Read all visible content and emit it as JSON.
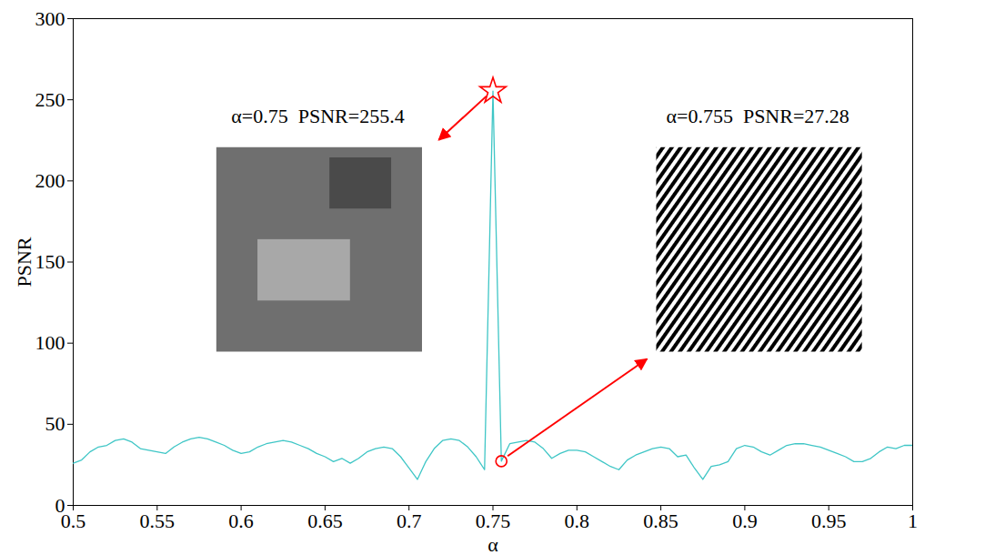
{
  "chart_data": {
    "type": "line",
    "x_label": "α",
    "y_label": "PSNR",
    "xlim": [
      0.5,
      1
    ],
    "ylim": [
      0,
      300
    ],
    "xticks": [
      0.5,
      0.55,
      0.6,
      0.65,
      0.7,
      0.75,
      0.8,
      0.85,
      0.9,
      0.95,
      1
    ],
    "yticks": [
      0,
      50,
      100,
      150,
      200,
      250,
      300
    ],
    "grid": false,
    "x": [
      0.5,
      0.505,
      0.51,
      0.515,
      0.52,
      0.525,
      0.53,
      0.535,
      0.54,
      0.545,
      0.55,
      0.555,
      0.56,
      0.565,
      0.57,
      0.575,
      0.58,
      0.585,
      0.59,
      0.595,
      0.6,
      0.605,
      0.61,
      0.615,
      0.62,
      0.625,
      0.63,
      0.635,
      0.64,
      0.645,
      0.65,
      0.655,
      0.66,
      0.665,
      0.67,
      0.675,
      0.68,
      0.685,
      0.69,
      0.695,
      0.7,
      0.705,
      0.71,
      0.715,
      0.72,
      0.725,
      0.73,
      0.735,
      0.74,
      0.745,
      0.75,
      0.755,
      0.76,
      0.765,
      0.77,
      0.775,
      0.78,
      0.785,
      0.79,
      0.795,
      0.8,
      0.805,
      0.81,
      0.815,
      0.82,
      0.825,
      0.83,
      0.835,
      0.84,
      0.845,
      0.85,
      0.855,
      0.86,
      0.865,
      0.87,
      0.875,
      0.88,
      0.885,
      0.89,
      0.895,
      0.9,
      0.905,
      0.91,
      0.915,
      0.92,
      0.925,
      0.93,
      0.935,
      0.94,
      0.945,
      0.95,
      0.955,
      0.96,
      0.965,
      0.97,
      0.975,
      0.98,
      0.985,
      0.99,
      0.995,
      1
    ],
    "series": [
      {
        "color": "#3fc6c6",
        "line_style": "solid",
        "values": [
          26,
          28,
          33,
          36,
          37,
          40,
          41,
          39,
          35,
          34,
          33,
          32,
          36,
          39,
          41,
          42,
          41,
          39,
          37,
          34,
          32,
          33,
          36,
          38,
          39,
          40,
          39,
          37,
          35,
          32,
          30,
          27,
          29,
          26,
          29,
          33,
          35,
          36,
          35,
          30,
          23,
          16,
          27,
          35,
          40,
          41,
          40,
          36,
          30,
          22,
          255.4,
          27.28,
          38,
          39,
          40,
          39,
          35,
          29,
          32,
          34,
          34,
          33,
          30,
          27,
          24,
          22,
          28,
          31,
          33,
          35,
          36,
          35,
          30,
          31,
          23,
          16,
          24,
          25,
          27,
          35,
          37,
          36,
          33,
          31,
          34,
          37,
          38,
          38,
          37,
          36,
          34,
          32,
          30,
          27,
          27,
          29,
          33,
          36,
          35,
          37,
          37
        ]
      }
    ],
    "annotations": [
      {
        "text": "α=0.75  PSNR=255.4",
        "x": 0.75,
        "y": 255.4,
        "marker": "star",
        "color": "#ff0000"
      },
      {
        "text": "α=0.755  PSNR=27.28",
        "x": 0.755,
        "y": 27.28,
        "marker": "circle",
        "color": "#ff0000"
      }
    ]
  }
}
